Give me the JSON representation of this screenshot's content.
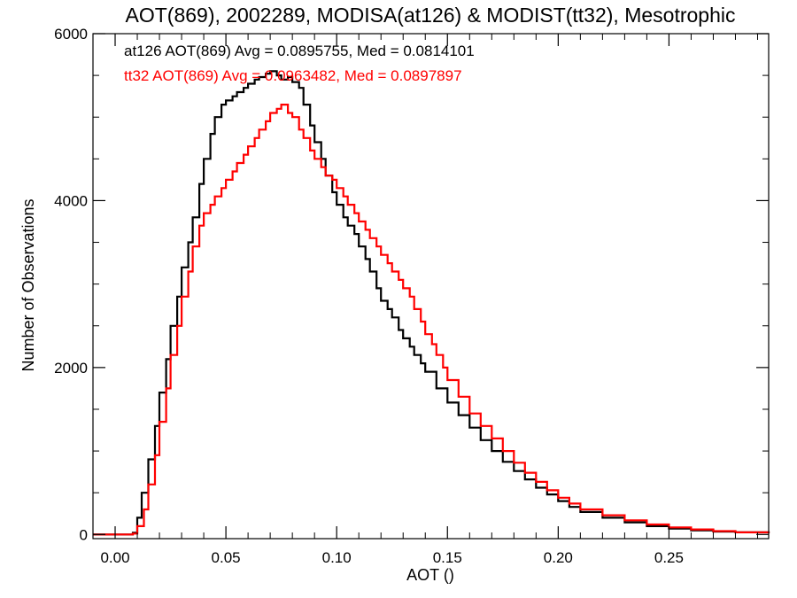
{
  "chart_data": {
    "type": "line",
    "title": "AOT(869), 2002289, MODISA(at126) & MODIST(tt32), Mesotrophic",
    "xlabel": "AOT ()",
    "ylabel": "Number of Observations",
    "xlim": [
      -0.01,
      0.295
    ],
    "ylim": [
      -50,
      6000
    ],
    "x_ticks": [
      0.0,
      0.05,
      0.1,
      0.15,
      0.2,
      0.25
    ],
    "x_tick_labels": [
      "0.00",
      "0.05",
      "0.10",
      "0.15",
      "0.20",
      "0.25"
    ],
    "y_ticks": [
      0,
      2000,
      4000,
      6000
    ],
    "y_tick_labels": [
      "0",
      "2000",
      "4000",
      "6000"
    ],
    "grid": false,
    "legend_placement": "top-left",
    "step": "histogram",
    "series": [
      {
        "name": "at126",
        "label": "at126 AOT(869) Avg = 0.0895755, Med = 0.0814101",
        "color": "#000000",
        "x": [
          -0.01,
          0.0,
          0.005,
          0.008,
          0.01,
          0.012,
          0.015,
          0.018,
          0.02,
          0.023,
          0.025,
          0.028,
          0.03,
          0.033,
          0.035,
          0.038,
          0.04,
          0.043,
          0.045,
          0.048,
          0.05,
          0.053,
          0.055,
          0.058,
          0.06,
          0.063,
          0.065,
          0.068,
          0.07,
          0.073,
          0.075,
          0.078,
          0.08,
          0.083,
          0.085,
          0.088,
          0.09,
          0.093,
          0.095,
          0.098,
          0.1,
          0.103,
          0.105,
          0.108,
          0.11,
          0.113,
          0.115,
          0.118,
          0.12,
          0.123,
          0.125,
          0.128,
          0.13,
          0.133,
          0.135,
          0.138,
          0.14,
          0.145,
          0.15,
          0.155,
          0.16,
          0.165,
          0.17,
          0.175,
          0.18,
          0.185,
          0.19,
          0.195,
          0.2,
          0.205,
          0.21,
          0.22,
          0.23,
          0.24,
          0.25,
          0.26,
          0.27,
          0.28,
          0.295
        ],
        "y": [
          0,
          0,
          0,
          20,
          200,
          500,
          900,
          1300,
          1700,
          2100,
          2500,
          2850,
          3200,
          3500,
          3800,
          4200,
          4500,
          4800,
          5000,
          5150,
          5200,
          5250,
          5300,
          5350,
          5400,
          5450,
          5480,
          5520,
          5550,
          5500,
          5450,
          5480,
          5420,
          5350,
          5150,
          4900,
          4700,
          4500,
          4300,
          4100,
          3950,
          3800,
          3700,
          3600,
          3450,
          3300,
          3150,
          2950,
          2800,
          2700,
          2600,
          2450,
          2350,
          2250,
          2150,
          2050,
          1950,
          1750,
          1580,
          1430,
          1280,
          1130,
          1000,
          870,
          760,
          660,
          560,
          480,
          400,
          330,
          270,
          200,
          145,
          100,
          70,
          50,
          35,
          25,
          15
        ]
      },
      {
        "name": "tt32",
        "label": "tt32 AOT(869) Avg = 0.0963482, Med = 0.0897897",
        "color": "#ff0000",
        "x": [
          -0.01,
          0.0,
          0.005,
          0.008,
          0.01,
          0.013,
          0.015,
          0.018,
          0.02,
          0.023,
          0.025,
          0.028,
          0.03,
          0.033,
          0.035,
          0.038,
          0.04,
          0.043,
          0.045,
          0.048,
          0.05,
          0.053,
          0.055,
          0.058,
          0.06,
          0.063,
          0.065,
          0.068,
          0.07,
          0.073,
          0.075,
          0.078,
          0.08,
          0.083,
          0.085,
          0.088,
          0.09,
          0.093,
          0.095,
          0.098,
          0.1,
          0.103,
          0.105,
          0.108,
          0.11,
          0.113,
          0.115,
          0.118,
          0.12,
          0.123,
          0.125,
          0.128,
          0.13,
          0.133,
          0.135,
          0.138,
          0.14,
          0.143,
          0.145,
          0.148,
          0.15,
          0.155,
          0.16,
          0.165,
          0.17,
          0.175,
          0.18,
          0.185,
          0.19,
          0.195,
          0.2,
          0.205,
          0.21,
          0.22,
          0.23,
          0.24,
          0.25,
          0.26,
          0.27,
          0.28,
          0.295
        ],
        "y": [
          0,
          0,
          0,
          10,
          100,
          300,
          600,
          950,
          1350,
          1750,
          2150,
          2500,
          2850,
          3150,
          3450,
          3700,
          3850,
          3950,
          4050,
          4150,
          4250,
          4350,
          4450,
          4550,
          4650,
          4750,
          4850,
          4950,
          5050,
          5100,
          5150,
          5050,
          5000,
          4850,
          4750,
          4600,
          4500,
          4400,
          4300,
          4250,
          4150,
          4050,
          3950,
          3850,
          3750,
          3650,
          3550,
          3450,
          3350,
          3250,
          3150,
          3050,
          2950,
          2850,
          2700,
          2550,
          2400,
          2280,
          2150,
          2000,
          1850,
          1650,
          1450,
          1300,
          1150,
          1000,
          860,
          740,
          630,
          530,
          440,
          370,
          300,
          230,
          170,
          120,
          85,
          60,
          40,
          25,
          15
        ]
      }
    ]
  }
}
